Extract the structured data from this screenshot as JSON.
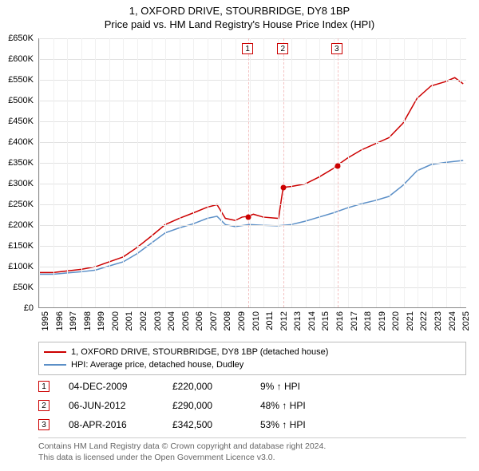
{
  "title_line1": "1, OXFORD DRIVE, STOURBRIDGE, DY8 1BP",
  "title_line2": "Price paid vs. HM Land Registry's House Price Index (HPI)",
  "chart": {
    "type": "line",
    "x_start": 1995,
    "x_end": 2025.5,
    "ylim": [
      0,
      650000
    ],
    "ytick_step": 50000,
    "yticks": [
      "£0",
      "£50K",
      "£100K",
      "£150K",
      "£200K",
      "£250K",
      "£300K",
      "£350K",
      "£400K",
      "£450K",
      "£500K",
      "£550K",
      "£600K",
      "£650K"
    ],
    "xticks": [
      1995,
      1996,
      1997,
      1998,
      1999,
      2000,
      2001,
      2002,
      2003,
      2004,
      2005,
      2006,
      2007,
      2008,
      2009,
      2010,
      2011,
      2012,
      2013,
      2014,
      2015,
      2016,
      2017,
      2018,
      2019,
      2020,
      2021,
      2022,
      2023,
      2024,
      2025
    ],
    "grid_color": "#e2e2e2",
    "background_color": "#ffffff",
    "series": {
      "property": {
        "color": "#cc0000",
        "width": 1.5,
        "data": [
          [
            1995,
            84000
          ],
          [
            1996,
            84000
          ],
          [
            1997,
            88000
          ],
          [
            1998,
            92000
          ],
          [
            1999,
            98000
          ],
          [
            2000,
            110000
          ],
          [
            2001,
            122000
          ],
          [
            2002,
            145000
          ],
          [
            2003,
            172000
          ],
          [
            2004,
            200000
          ],
          [
            2005,
            215000
          ],
          [
            2006,
            228000
          ],
          [
            2007,
            242000
          ],
          [
            2007.7,
            248000
          ],
          [
            2008.3,
            215000
          ],
          [
            2009,
            210000
          ],
          [
            2009.5,
            218000
          ],
          [
            2009.92,
            220000
          ],
          [
            2010.3,
            225000
          ],
          [
            2011,
            218000
          ],
          [
            2011.7,
            216000
          ],
          [
            2012.1,
            215000
          ],
          [
            2012.43,
            290000
          ],
          [
            2013,
            292000
          ],
          [
            2014,
            298000
          ],
          [
            2015,
            315000
          ],
          [
            2016,
            335000
          ],
          [
            2016.27,
            342500
          ],
          [
            2017,
            360000
          ],
          [
            2018,
            380000
          ],
          [
            2019,
            395000
          ],
          [
            2020,
            410000
          ],
          [
            2021,
            445000
          ],
          [
            2022,
            505000
          ],
          [
            2023,
            535000
          ],
          [
            2024,
            545000
          ],
          [
            2024.7,
            555000
          ],
          [
            2025.3,
            540000
          ]
        ]
      },
      "hpi": {
        "color": "#5b8fc7",
        "width": 1.5,
        "data": [
          [
            1995,
            80000
          ],
          [
            1996,
            80000
          ],
          [
            1997,
            83000
          ],
          [
            1998,
            86000
          ],
          [
            1999,
            90000
          ],
          [
            2000,
            100000
          ],
          [
            2001,
            110000
          ],
          [
            2002,
            130000
          ],
          [
            2003,
            155000
          ],
          [
            2004,
            180000
          ],
          [
            2005,
            192000
          ],
          [
            2006,
            202000
          ],
          [
            2007,
            215000
          ],
          [
            2007.7,
            220000
          ],
          [
            2008.3,
            200000
          ],
          [
            2009,
            195000
          ],
          [
            2010,
            200000
          ],
          [
            2011,
            198000
          ],
          [
            2012,
            197000
          ],
          [
            2013,
            200000
          ],
          [
            2014,
            208000
          ],
          [
            2015,
            218000
          ],
          [
            2016,
            228000
          ],
          [
            2017,
            240000
          ],
          [
            2018,
            250000
          ],
          [
            2019,
            258000
          ],
          [
            2020,
            268000
          ],
          [
            2021,
            295000
          ],
          [
            2022,
            330000
          ],
          [
            2023,
            345000
          ],
          [
            2024,
            350000
          ],
          [
            2025.3,
            355000
          ]
        ]
      }
    },
    "markers": [
      {
        "n": "1",
        "x": 2009.92,
        "y": 220000,
        "line_color": "#f4c2c2"
      },
      {
        "n": "2",
        "x": 2012.43,
        "y": 290000,
        "line_color": "#f4c2c2"
      },
      {
        "n": "3",
        "x": 2016.27,
        "y": 342500,
        "line_color": "#f4c2c2"
      }
    ]
  },
  "legend": {
    "items": [
      {
        "color": "#cc0000",
        "label": "1, OXFORD DRIVE, STOURBRIDGE, DY8 1BP (detached house)"
      },
      {
        "color": "#5b8fc7",
        "label": "HPI: Average price, detached house, Dudley"
      }
    ]
  },
  "transactions": [
    {
      "n": "1",
      "date": "04-DEC-2009",
      "price": "£220,000",
      "pct": "9% ↑ HPI"
    },
    {
      "n": "2",
      "date": "06-JUN-2012",
      "price": "£290,000",
      "pct": "48% ↑ HPI"
    },
    {
      "n": "3",
      "date": "08-APR-2016",
      "price": "£342,500",
      "pct": "53% ↑ HPI"
    }
  ],
  "footer_line1": "Contains HM Land Registry data © Crown copyright and database right 2024.",
  "footer_line2": "This data is licensed under the Open Government Licence v3.0."
}
